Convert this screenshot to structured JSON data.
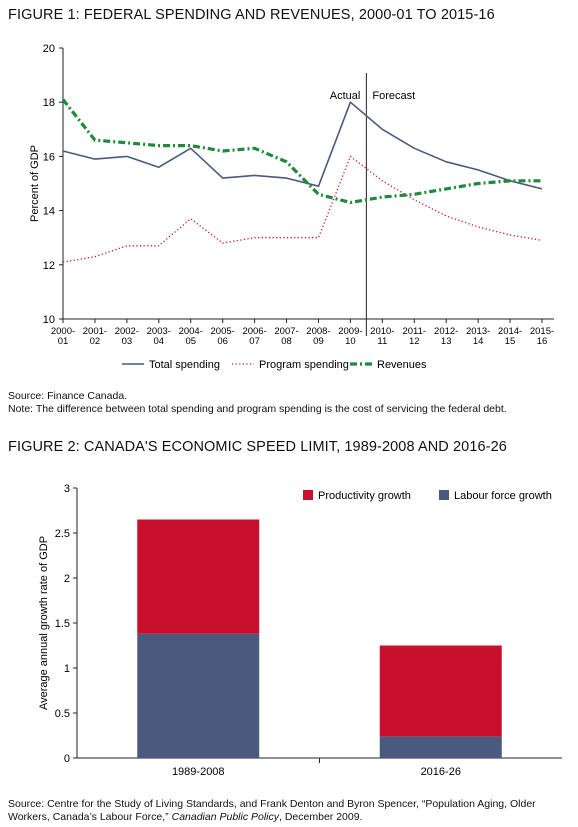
{
  "figure1": {
    "title": "FIGURE 1: FEDERAL SPENDING AND REVENUES, 2000-01 TO 2015-16",
    "source": "Source: Finance Canada.",
    "note": "Note: The difference between total spending and program spending is the cost of servicing the federal debt.",
    "chart_data": {
      "type": "line",
      "title": "FIGURE 1: FEDERAL SPENDING AND REVENUES, 2000-01 TO 2015-16",
      "ylabel": "Percent of GDP",
      "xlabel": "",
      "ylim": [
        10,
        20
      ],
      "yticks": [
        10,
        12,
        14,
        16,
        18,
        20
      ],
      "categories": [
        "2000-01",
        "2001-02",
        "2002-03",
        "2003-04",
        "2004-05",
        "2005-06",
        "2006-07",
        "2007-08",
        "2008-09",
        "2009-10",
        "2010-11",
        "2011-12",
        "2012-13",
        "2013-14",
        "2014-15",
        "2015-16"
      ],
      "category_lines": [
        [
          "2000-",
          "01"
        ],
        [
          "2001-",
          "02"
        ],
        [
          "2002-",
          "03"
        ],
        [
          "2003-",
          "04"
        ],
        [
          "2004-",
          "05"
        ],
        [
          "2005-",
          "06"
        ],
        [
          "2006-",
          "07"
        ],
        [
          "2007-",
          "08"
        ],
        [
          "2008-",
          "09"
        ],
        [
          "2009-",
          "10"
        ],
        [
          "2010-",
          "11"
        ],
        [
          "2011-",
          "12"
        ],
        [
          "2012-",
          "13"
        ],
        [
          "2013-",
          "14"
        ],
        [
          "2014-",
          "15"
        ],
        [
          "2015-",
          "16"
        ]
      ],
      "series": [
        {
          "name": "Total spending",
          "style": "solid",
          "color": "#4a5a7e",
          "values": [
            16.2,
            15.9,
            16.0,
            15.6,
            16.3,
            15.2,
            15.3,
            15.2,
            14.9,
            18.0,
            17.0,
            16.3,
            15.8,
            15.5,
            15.1,
            14.8
          ]
        },
        {
          "name": "Program spending",
          "style": "dotted",
          "color": "#c8102e",
          "values": [
            12.1,
            12.3,
            12.7,
            12.7,
            13.7,
            12.8,
            13.0,
            13.0,
            13.0,
            16.0,
            15.1,
            14.4,
            13.8,
            13.4,
            13.1,
            12.9
          ]
        },
        {
          "name": "Revenues",
          "style": "dash-dot",
          "color": "#1f8a3c",
          "values": [
            18.1,
            16.6,
            16.5,
            16.4,
            16.4,
            16.2,
            16.3,
            15.8,
            14.6,
            14.3,
            14.5,
            14.6,
            14.8,
            15.0,
            15.1,
            15.1
          ]
        }
      ],
      "annotations": {
        "actual": "Actual",
        "forecast": "Forecast",
        "divider_category": "2009-10"
      },
      "grid": false,
      "legend_position": "bottom"
    }
  },
  "figure2": {
    "title": "FIGURE 2: CANADA'S ECONOMIC SPEED LIMIT, 1989-2008 AND 2016-26",
    "source_prefix": "Source: Centre for the Study of Living Standards, and Frank Denton and Byron Spencer, “Population Aging, Older Workers, Canada’s Labour Force,” ",
    "source_journal": "Canadian Public Policy",
    "source_suffix": ", December 2009.",
    "chart_data": {
      "type": "bar",
      "stacked": true,
      "title": "FIGURE 2: CANADA'S ECONOMIC SPEED LIMIT, 1989-2008 AND 2016-26",
      "ylabel": "Average annual growth rate of GDP",
      "xlabel": "",
      "ylim": [
        0,
        3
      ],
      "yticks": [
        "0",
        "0.5",
        "1",
        "1.5",
        "2",
        "2.5",
        "3"
      ],
      "categories": [
        "1989-2008",
        "2016-26"
      ],
      "series": [
        {
          "name": "Labour force growth",
          "color": "#4a5a7e",
          "values": [
            1.38,
            0.24
          ]
        },
        {
          "name": "Productivity growth",
          "color": "#c8102e",
          "values": [
            1.27,
            1.01
          ]
        }
      ],
      "legend_order": [
        "Productivity growth",
        "Labour force growth"
      ],
      "grid": false,
      "legend_position": "top-right"
    }
  }
}
